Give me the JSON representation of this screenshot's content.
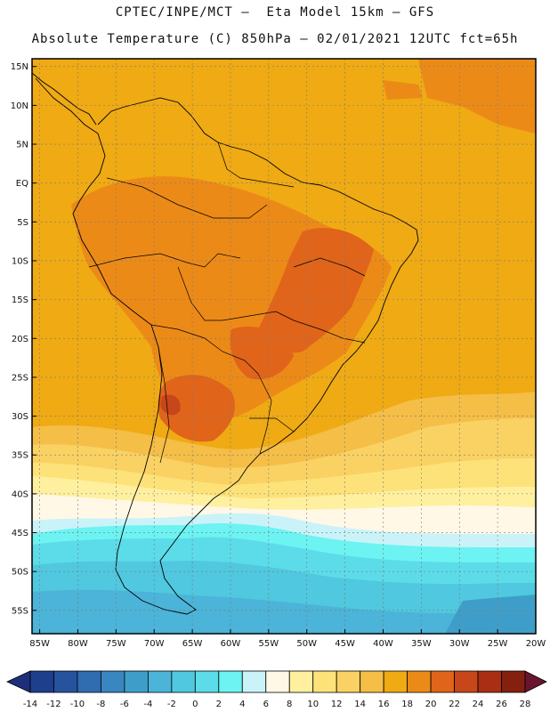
{
  "header": {
    "line1": "CPTEC/INPE/MCT —  Eta Model 15km — GFS",
    "line2": "Absolute Temperature (C) 850hPa — 02/01/2021 12UTC fct=65h"
  },
  "map": {
    "lat_labels": [
      "15N",
      "10N",
      "5N",
      "EQ",
      "5S",
      "10S",
      "15S",
      "20S",
      "25S",
      "30S",
      "35S",
      "40S",
      "45S",
      "50S",
      "55S"
    ],
    "lon_labels": [
      "85W",
      "80W",
      "75W",
      "70W",
      "65W",
      "60W",
      "55W",
      "50W",
      "45W",
      "40W",
      "35W",
      "30W",
      "25W",
      "20W"
    ],
    "lat_range": [
      16,
      -58
    ],
    "lon_range": [
      -86,
      -20
    ]
  },
  "colorbar": {
    "labels": [
      "-14",
      "-12",
      "-10",
      "-8",
      "-6",
      "-4",
      "-2",
      "0",
      "2",
      "4",
      "6",
      "8",
      "10",
      "12",
      "14",
      "16",
      "18",
      "20",
      "22",
      "24",
      "26",
      "28"
    ],
    "colors": [
      "#1d3f8c",
      "#27539e",
      "#2f6cb0",
      "#3a86c0",
      "#3f9ec9",
      "#4bb4d8",
      "#50c8df",
      "#5cdce8",
      "#6cf3f2",
      "#c9f3f8",
      "#fff8e6",
      "#fff0a0",
      "#fde27a",
      "#f9d263",
      "#f4be47",
      "#efaa14",
      "#ec8a17",
      "#e0641a",
      "#c7461a",
      "#a92e14",
      "#84200f"
    ],
    "low_arrow_color": "#1d2f7a",
    "high_arrow_color": "#6a1530"
  }
}
